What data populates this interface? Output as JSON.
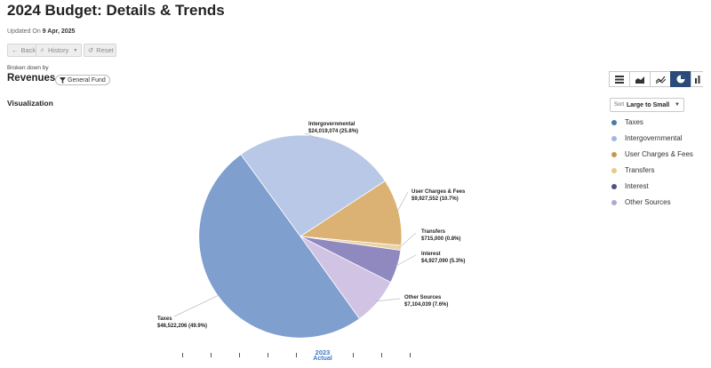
{
  "header": {
    "title": "2024 Budget: Details & Trends",
    "updated_prefix": "Updated On",
    "updated_date": "9 Apr, 2025"
  },
  "nav": {
    "back_label": "Back",
    "history_label": "History",
    "reset_label": "Reset"
  },
  "breakdown": {
    "label": "Broken down by",
    "dimension": "Revenues",
    "filter_chip": "General Fund"
  },
  "visualization": {
    "label": "Visualization",
    "view_options": [
      "table-icon",
      "area-chart-icon",
      "line-chart-icon",
      "pie-chart-icon",
      "bar-chart-icon"
    ],
    "active_view": "pie-chart-icon",
    "sort_label": "Sort",
    "sort_value": "Large to Small"
  },
  "axis": {
    "year": "2023",
    "kind": "Actual"
  },
  "chart_data": {
    "type": "pie",
    "title": "",
    "slices": [
      {
        "name": "Taxes",
        "value": 46522206,
        "value_label": "$46,522,206",
        "percent_label": "(49.9%)",
        "color": "#7f9fcf"
      },
      {
        "name": "Intergovernmental",
        "value": 24019074,
        "value_label": "$24,019,074",
        "percent_label": "(25.8%)",
        "color": "#b8c8e6"
      },
      {
        "name": "User Charges & Fees",
        "value": 9927552,
        "value_label": "$9,927,552",
        "percent_label": "(10.7%)",
        "color": "#dbb273"
      },
      {
        "name": "Transfers",
        "value": 715000,
        "value_label": "$715,000",
        "percent_label": "(0.8%)",
        "color": "#ead3a2"
      },
      {
        "name": "Interest",
        "value": 4927090,
        "value_label": "$4,927,090",
        "percent_label": "(5.3%)",
        "color": "#8f89bf"
      },
      {
        "name": "Other Sources",
        "value": 7104039,
        "value_label": "$7,104,039",
        "percent_label": "(7.6%)",
        "color": "#d0c3e4"
      }
    ],
    "legend": {
      "placement": "right",
      "items": [
        {
          "label": "Taxes",
          "color": "#4e79a7"
        },
        {
          "label": "Intergovernmental",
          "color": "#a0b9de"
        },
        {
          "label": "User Charges & Fees",
          "color": "#c9974a"
        },
        {
          "label": "Transfers",
          "color": "#e8c98a"
        },
        {
          "label": "Interest",
          "color": "#4e5187"
        },
        {
          "label": "Other Sources",
          "color": "#b3a7d6"
        }
      ]
    }
  }
}
